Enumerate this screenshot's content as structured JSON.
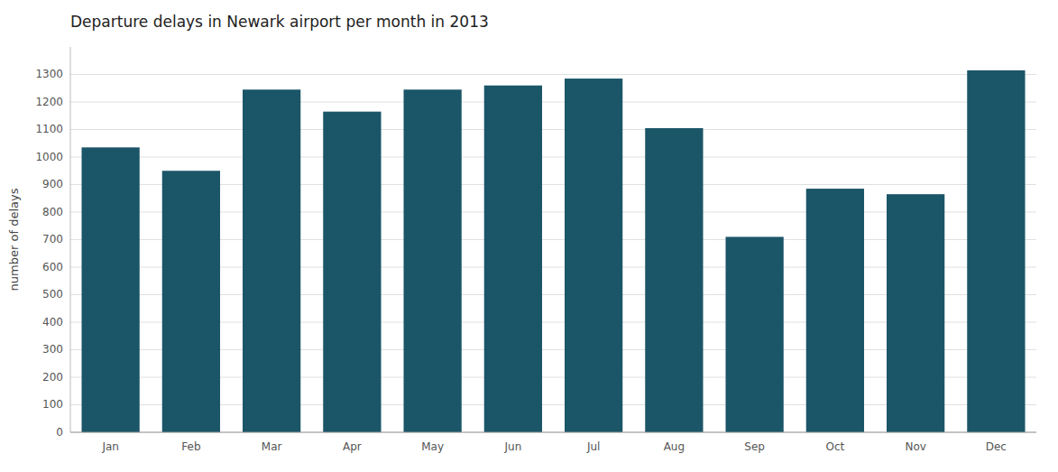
{
  "chart_data": {
    "type": "bar",
    "title": "Departure delays in Newark airport per month in 2013",
    "ylabel": "number of delays",
    "categories": [
      "Jan",
      "Feb",
      "Mar",
      "Apr",
      "May",
      "Jun",
      "Jul",
      "Aug",
      "Sep",
      "Oct",
      "Nov",
      "Dec"
    ],
    "values": [
      1035,
      950,
      1245,
      1165,
      1245,
      1260,
      1285,
      1105,
      710,
      885,
      865,
      1315
    ],
    "color": "#1b5568",
    "ylim": [
      0,
      1400
    ],
    "yticks": [
      0,
      100,
      200,
      300,
      400,
      500,
      600,
      700,
      800,
      900,
      1000,
      1100,
      1200,
      1300
    ],
    "grid": true
  }
}
